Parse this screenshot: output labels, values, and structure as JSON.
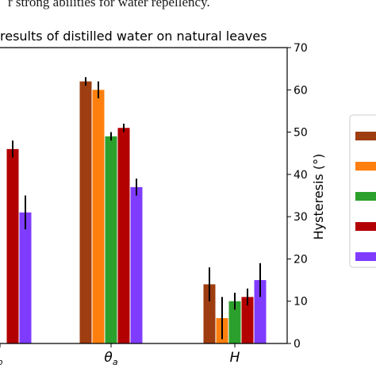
{
  "caption_fragment": "r strong abilities for water repellency.",
  "chart_data": {
    "type": "bar",
    "title": "results of distilled water on natural leaves",
    "categories": [
      "θp",
      "θa",
      "H"
    ],
    "category_labels": [
      {
        "main": "",
        "sub": "p"
      },
      {
        "main": "θ",
        "sub": "a"
      },
      {
        "main": "H",
        "sub": ""
      }
    ],
    "series": [
      {
        "color": "#9e3d10",
        "values": [
          null,
          62,
          14
        ],
        "errors": [
          null,
          1,
          4
        ]
      },
      {
        "color": "#ff7f0e",
        "values": [
          null,
          60,
          6
        ],
        "errors": [
          null,
          2,
          5
        ]
      },
      {
        "color": "#2ca02c",
        "values": [
          null,
          49,
          10
        ],
        "errors": [
          null,
          1,
          2
        ]
      },
      {
        "color": "#b30000",
        "values": [
          46,
          51,
          11
        ],
        "errors": [
          2,
          1,
          2
        ]
      },
      {
        "color": "#7f3cff",
        "values": [
          31,
          37,
          15
        ],
        "errors": [
          4,
          2,
          4
        ]
      }
    ],
    "y_right": {
      "label": "Hysteresis (°)",
      "ylim": [
        0,
        70
      ],
      "ticks": [
        0,
        10,
        20,
        30,
        40,
        50,
        60,
        70
      ]
    },
    "grid": false,
    "legend_placement": "right"
  }
}
